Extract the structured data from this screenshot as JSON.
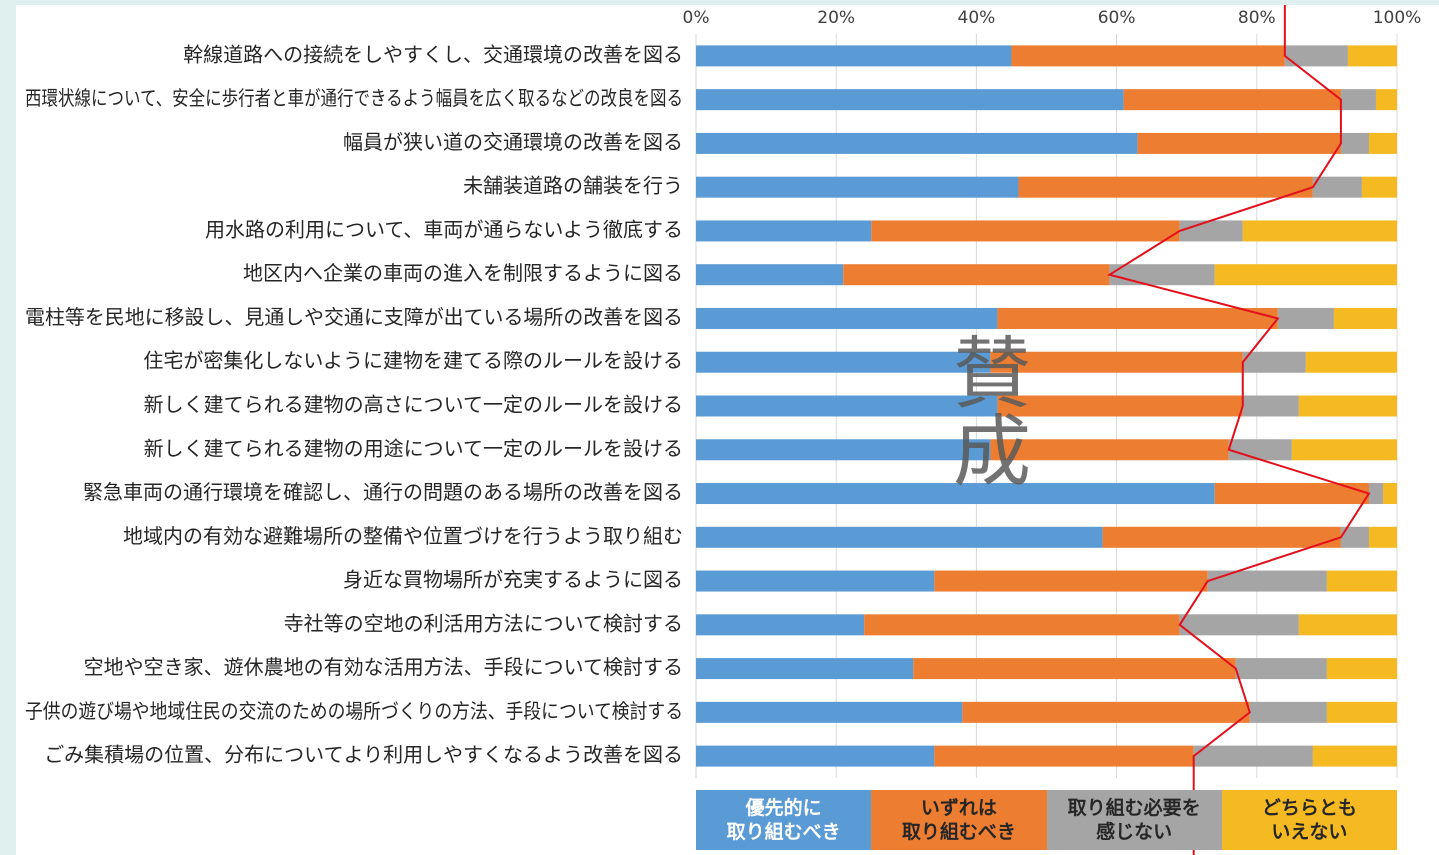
{
  "chart_data": {
    "type": "stacked_barh",
    "annotation": "賛成",
    "categories": [
      "幹線道路への接続をしやすくし、交通環境の改善を図る",
      "西環状線について、安全に歩行者と車が通行できるよう幅員を広く取るなどの改良を図る",
      "幅員が狭い道の交通環境の改善を図る",
      "未舗装道路の舗装を行う",
      "用水路の利用について、車両が通らないよう徹底する",
      "地区内へ企業の車両の進入を制限するように図る",
      "電柱等を民地に移設し、見通しや交通に支障が出ている場所の改善を図る",
      "住宅が密集化しないように建物を建てる際のルールを設ける",
      "新しく建てられる建物の高さについて一定のルールを設ける",
      "新しく建てられる建物の用途について一定のルールを設ける",
      "緊急車両の通行環境を確認し、通行の問題のある場所の改善を図る",
      "地域内の有効な避難場所の整備や位置づけを行うよう取り組む",
      "身近な買物場所が充実するように図る",
      "寺社等の空地の利活用方法について検討する",
      "空地や空き家、遊休農地の有効な活用方法、手段について検討する",
      "子供の遊び場や地域住民の交流のための場所づくりの方法、手段について検討する",
      "ごみ集積場の位置、分布についてより利用しやすくなるよう改善を図る"
    ],
    "series": [
      {
        "name": "優先的に\n取り組むべき",
        "color": "#5b9bd5",
        "values": [
          45,
          61,
          63,
          46,
          25,
          21,
          43,
          42,
          43,
          42,
          74,
          58,
          34,
          24,
          31,
          38,
          34
        ]
      },
      {
        "name": "いずれは\n取り組むべき",
        "color": "#ed7d31",
        "values": [
          39,
          31,
          29,
          42,
          44,
          38,
          40,
          36,
          35,
          34,
          22,
          34,
          39,
          45,
          46,
          41,
          37
        ]
      },
      {
        "name": "取り組む必要を\n感じない",
        "color": "#a5a5a5",
        "values": [
          9,
          5,
          4,
          7,
          9,
          15,
          8,
          9,
          8,
          9,
          2,
          4,
          17,
          17,
          13,
          11,
          17
        ]
      },
      {
        "name": "どちらとも\nいえない",
        "color": "#f5b921",
        "values": [
          7,
          3,
          4,
          5,
          22,
          26,
          9,
          13,
          14,
          15,
          2,
          4,
          10,
          14,
          10,
          10,
          12
        ]
      }
    ],
    "line_color": "#e3101b",
    "xlim": [
      0,
      100
    ],
    "xticks": [
      {
        "value": 0,
        "label": "0%"
      },
      {
        "value": 20,
        "label": "20%"
      },
      {
        "value": 40,
        "label": "40%"
      },
      {
        "value": 60,
        "label": "60%"
      },
      {
        "value": 80,
        "label": "80%"
      },
      {
        "value": 100,
        "label": "100%"
      }
    ],
    "grid": true
  }
}
